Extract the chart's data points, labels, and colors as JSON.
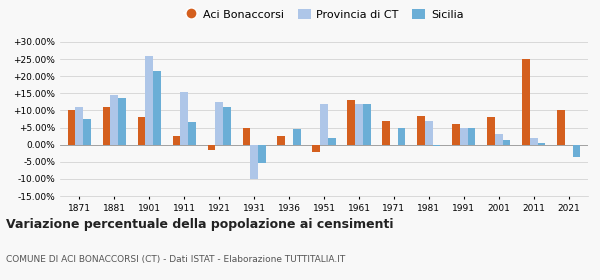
{
  "years": [
    1871,
    1881,
    1901,
    1911,
    1921,
    1931,
    1936,
    1951,
    1961,
    1971,
    1981,
    1991,
    2001,
    2011,
    2021
  ],
  "aci_bonaccorsi": [
    10.0,
    11.0,
    8.0,
    2.5,
    -1.5,
    5.0,
    2.5,
    -2.0,
    13.0,
    7.0,
    8.5,
    6.0,
    8.0,
    25.0,
    10.0
  ],
  "provincia_ct": [
    11.0,
    14.5,
    26.0,
    15.5,
    12.5,
    -10.0,
    null,
    12.0,
    12.0,
    null,
    7.0,
    5.0,
    3.0,
    2.0,
    null
  ],
  "sicilia": [
    7.5,
    13.5,
    21.5,
    6.5,
    11.0,
    -5.5,
    4.5,
    2.0,
    12.0,
    5.0,
    -0.5,
    5.0,
    1.5,
    0.5,
    -3.5
  ],
  "color_aci": "#d45f1e",
  "color_ct": "#aec6e8",
  "color_sicilia": "#6baed6",
  "title": "Variazione percentuale della popolazione ai censimenti",
  "subtitle": "COMUNE DI ACI BONACCORSI (CT) - Dati ISTAT - Elaborazione TUTTITALIA.IT",
  "legend_labels": [
    "Aci Bonaccorsi",
    "Provincia di CT",
    "Sicilia"
  ],
  "ylim": [
    -15.0,
    30.0
  ],
  "yticks": [
    -15.0,
    -10.0,
    -5.0,
    0.0,
    5.0,
    10.0,
    15.0,
    20.0,
    25.0,
    30.0
  ],
  "background_color": "#f8f8f8"
}
